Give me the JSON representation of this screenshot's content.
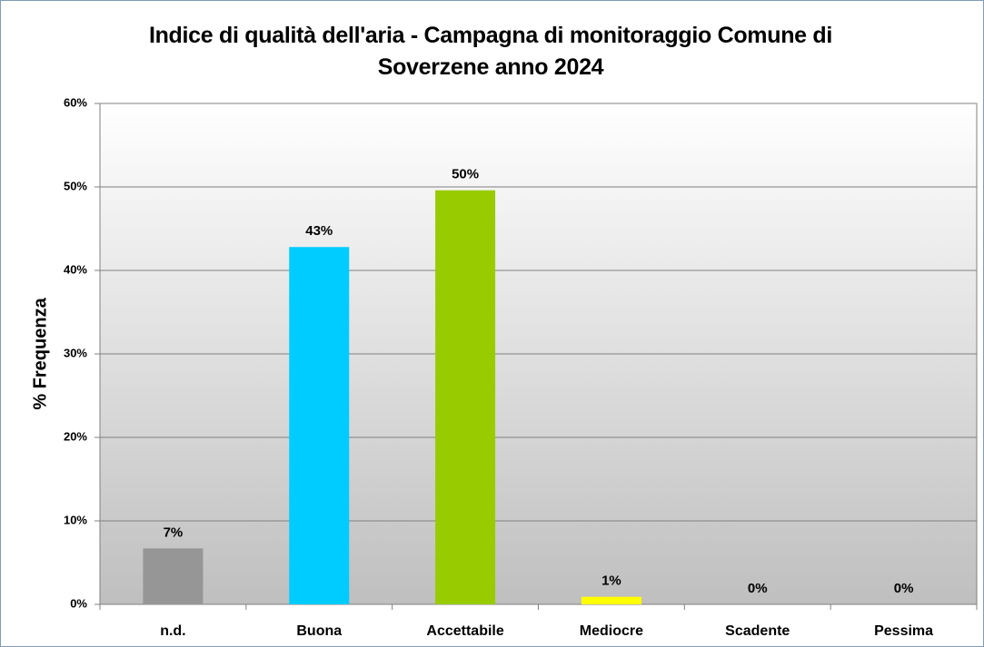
{
  "chart_data": {
    "type": "bar",
    "title": "Indice di qualità dell'aria - Campagna di monitoraggio Comune di Soverzene anno 2024",
    "y_label": "% Frequenza",
    "categories": [
      "n.d.",
      "Buona",
      "Accettabile",
      "Mediocre",
      "Scadente",
      "Pessima"
    ],
    "values": [
      6.7,
      42.8,
      49.6,
      0.9,
      0,
      0
    ],
    "value_labels": [
      "7%",
      "43%",
      "50%",
      "1%",
      "0%",
      "0%"
    ],
    "colors": [
      "#969696",
      "#00ccff",
      "#99cc00",
      "#ffff00",
      "#ff9900",
      "#ff0000"
    ],
    "ylim": [
      0,
      60
    ],
    "yticks": [
      {
        "value": 0,
        "label": "0%"
      },
      {
        "value": 10,
        "label": "10%"
      },
      {
        "value": 20,
        "label": "20%"
      },
      {
        "value": 30,
        "label": "30%"
      },
      {
        "value": 40,
        "label": "40%"
      },
      {
        "value": 50,
        "label": "50%"
      },
      {
        "value": 60,
        "label": "60%"
      }
    ],
    "grid": true
  }
}
